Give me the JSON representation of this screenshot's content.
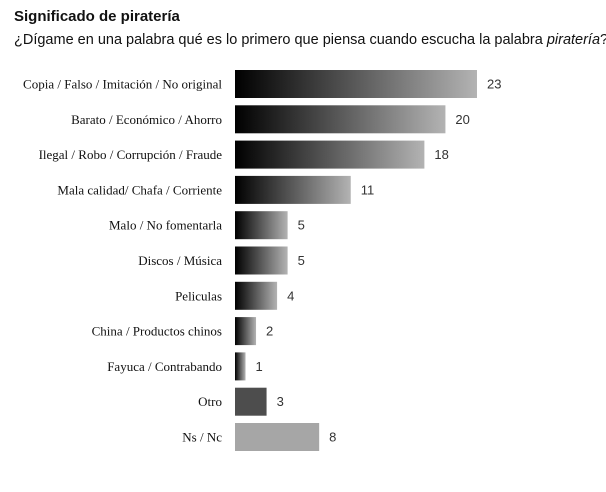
{
  "chart_data": {
    "type": "bar",
    "orientation": "horizontal",
    "title": "Significado de piratería",
    "subtitle": {
      "prefix": "¿Dígame en una palabra qué es lo primero que piensa cuando escucha la palabra ",
      "emphasis": "piratería",
      "suffix": "?"
    },
    "categories": [
      "Copia / Falso / Imitación / No original",
      "Barato / Económico / Ahorro",
      "Ilegal / Robo / Corrupción / Fraude",
      "Mala calidad/ Chafa / Corriente",
      "Malo / No fomentarla",
      "Discos / Música",
      "Peliculas",
      "China / Productos chinos",
      "Fayuca / Contrabando",
      "Otro",
      "Ns / Nc"
    ],
    "values": [
      23,
      20,
      18,
      11,
      5,
      5,
      4,
      2,
      1,
      3,
      8
    ],
    "bar_styles": [
      "gradient",
      "gradient",
      "gradient",
      "gradient",
      "gradient",
      "gradient",
      "gradient",
      "gradient",
      "gradient",
      "solid-dark",
      "solid-light"
    ],
    "colors": {
      "gradient_start": "#000000",
      "gradient_end": "#b3b3b3",
      "solid_dark": "#4d4d4d",
      "solid_light": "#a6a6a6"
    },
    "xlim": [
      0,
      23
    ]
  }
}
